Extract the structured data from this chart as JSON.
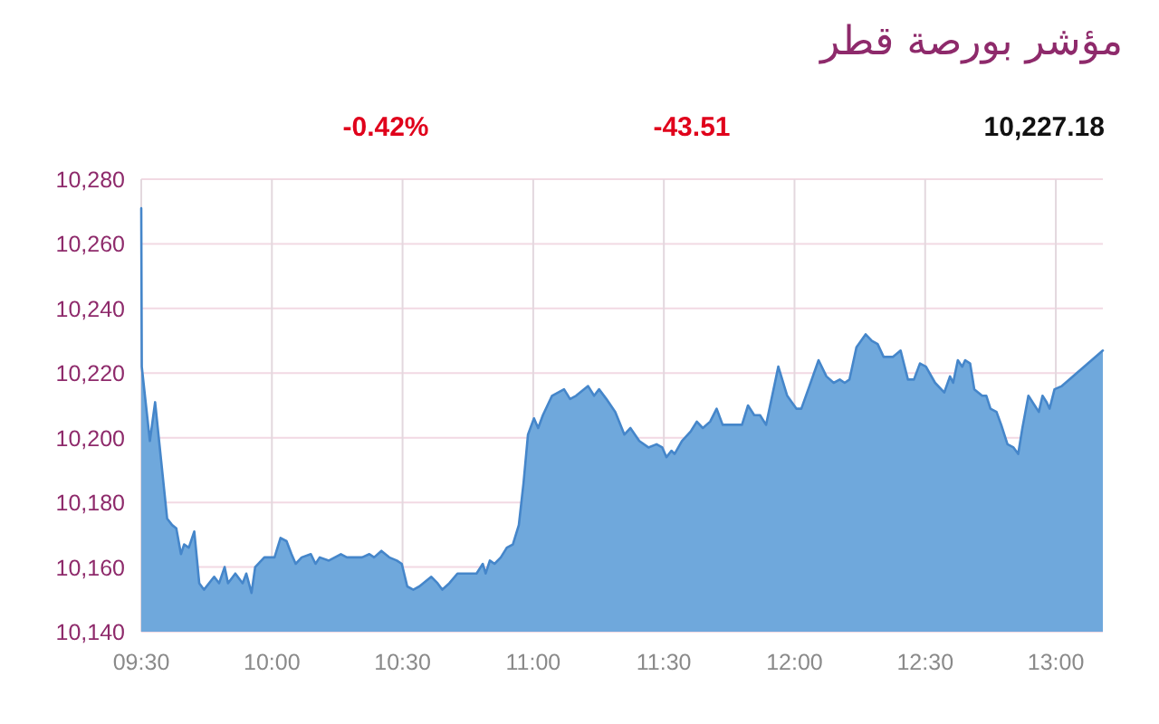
{
  "chart_data": {
    "type": "area",
    "title": "مؤشر بورصة قطر",
    "annotations": [
      "-0.42%",
      "-43.51",
      "10,227.18"
    ],
    "color": "#6fa8dc",
    "x": [
      9.5,
      9.502,
      9.533,
      9.553,
      9.599,
      9.618,
      9.634,
      9.652,
      9.664,
      9.682,
      9.703,
      9.722,
      9.74,
      9.779,
      9.798,
      9.819,
      9.832,
      9.86,
      9.888,
      9.902,
      9.922,
      9.936,
      9.971,
      10.01,
      10.033,
      10.056,
      10.075,
      10.091,
      10.114,
      10.149,
      10.167,
      10.183,
      10.218,
      10.264,
      10.287,
      10.345,
      10.373,
      10.391,
      10.419,
      10.449,
      10.478,
      10.497,
      10.518,
      10.541,
      10.564,
      10.61,
      10.634,
      10.652,
      10.679,
      10.71,
      10.783,
      10.807,
      10.818,
      10.834,
      10.852,
      10.876,
      10.899,
      10.922,
      10.945,
      10.963,
      10.98,
      11.003,
      11.019,
      11.037,
      11.072,
      11.118,
      11.141,
      11.164,
      11.21,
      11.233,
      11.252,
      11.28,
      11.314,
      11.349,
      11.372,
      11.406,
      11.441,
      11.472,
      11.494,
      11.51,
      11.529,
      11.541,
      11.569,
      11.603,
      11.626,
      11.649,
      11.677,
      11.702,
      11.725,
      11.758,
      11.799,
      11.822,
      11.846,
      11.868,
      11.891,
      11.938,
      11.972,
      12.007,
      12.026,
      12.057,
      12.092,
      12.122,
      12.15,
      12.173,
      12.192,
      12.21,
      12.237,
      12.272,
      12.296,
      12.318,
      12.341,
      12.376,
      12.406,
      12.434,
      12.457,
      12.48,
      12.503,
      12.538,
      12.573,
      12.595,
      12.607,
      12.625,
      12.642,
      12.653,
      12.672,
      12.688,
      12.718,
      12.734,
      12.75,
      12.773,
      12.791,
      12.815,
      12.838,
      12.856,
      12.872,
      12.895,
      12.919,
      12.935,
      12.949,
      12.965,
      12.976,
      12.995,
      13.023,
      13.18
    ],
    "values": [
      10271,
      10222,
      10199,
      10211,
      10175,
      10173,
      10172,
      10164,
      10167,
      10166,
      10171,
      10155,
      10153,
      10157,
      10155,
      10160,
      10155,
      10158,
      10155,
      10158,
      10152,
      10160,
      10163,
      10163,
      10169,
      10168,
      10164,
      10161,
      10163,
      10164,
      10161,
      10163,
      10162,
      10164,
      10163,
      10163,
      10164,
      10163,
      10165,
      10163,
      10162,
      10161,
      10154,
      10153,
      10154,
      10157,
      10155,
      10153,
      10155,
      10158,
      10158,
      10161,
      10158,
      10162,
      10161,
      10163,
      10166,
      10167,
      10173,
      10186,
      10201,
      10206,
      10203,
      10207,
      10213,
      10215,
      10212,
      10213,
      10216,
      10213,
      10215,
      10212,
      10208,
      10201,
      10203,
      10199,
      10197,
      10198,
      10197,
      10194,
      10196,
      10195,
      10199,
      10202,
      10205,
      10203,
      10205,
      10209,
      10204,
      10204,
      10204,
      10210,
      10207,
      10207,
      10204,
      10222,
      10213,
      10209,
      10209,
      10216,
      10224,
      10219,
      10217,
      10218,
      10217,
      10218,
      10228,
      10232,
      10230,
      10229,
      10225,
      10225,
      10227,
      10218,
      10218,
      10223,
      10222,
      10217,
      10214,
      10219,
      10217,
      10224,
      10222,
      10224,
      10223,
      10215,
      10213,
      10213,
      10209,
      10208,
      10204,
      10198,
      10197,
      10195,
      10203,
      10213,
      10210,
      10208,
      10213,
      10211,
      10209,
      10215,
      10216,
      10227
    ],
    "xlim": [
      9.5,
      13.18
    ],
    "xticks": [
      {
        "value": 9.5,
        "label": "09:30"
      },
      {
        "value": 10,
        "label": "10:00"
      },
      {
        "value": 10.5,
        "label": "10:30"
      },
      {
        "value": 11,
        "label": "11:00"
      },
      {
        "value": 11.5,
        "label": "11:30"
      },
      {
        "value": 12,
        "label": "12:00"
      },
      {
        "value": 12.5,
        "label": "12:30"
      },
      {
        "value": 13,
        "label": "13:00"
      }
    ],
    "ylim": [
      10140,
      10280
    ],
    "yticks": [
      {
        "value": 10140,
        "label": "10,140"
      },
      {
        "value": 10160,
        "label": "10,160"
      },
      {
        "value": 10180,
        "label": "10,180"
      },
      {
        "value": 10200,
        "label": "10,200"
      },
      {
        "value": 10220,
        "label": "10,220"
      },
      {
        "value": 10240,
        "label": "10,240"
      },
      {
        "value": 10260,
        "label": "10,260"
      },
      {
        "value": 10280,
        "label": "10,280"
      }
    ],
    "grid": true
  }
}
